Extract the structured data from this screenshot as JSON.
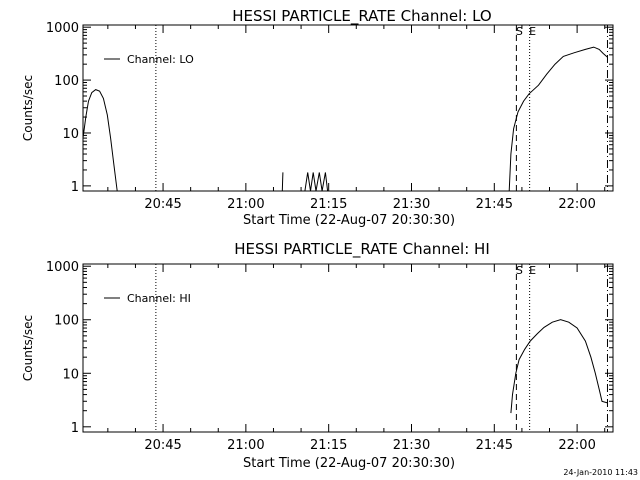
{
  "footer": {
    "generated": "24-Jan-2010 11:43"
  },
  "colors": {
    "foreground": "#000000",
    "background": "#ffffff"
  },
  "chart_data": [
    {
      "type": "line",
      "title": "HESSI PARTICLE_RATE Channel: LO",
      "xlabel": "Start Time (22-Aug-07 20:30:30)",
      "ylabel": "Counts/sec",
      "yscale": "log",
      "xunit": "minutes since 20:30:30",
      "xlim": [
        0,
        96
      ],
      "ylim": [
        0.8,
        1100
      ],
      "x_ticks": [
        {
          "x": 14.5,
          "label": "20:45"
        },
        {
          "x": 29.5,
          "label": "21:00"
        },
        {
          "x": 44.5,
          "label": "21:15"
        },
        {
          "x": 59.5,
          "label": "21:30"
        },
        {
          "x": 74.5,
          "label": "21:45"
        },
        {
          "x": 89.5,
          "label": "22:00"
        }
      ],
      "y_ticks": [
        {
          "y": 1,
          "label": "1"
        },
        {
          "y": 10,
          "label": "10"
        },
        {
          "y": 100,
          "label": "100"
        },
        {
          "y": 1000,
          "label": "1000"
        }
      ],
      "legend": {
        "label": "Channel: LO",
        "position": "top-left"
      },
      "markers": [
        {
          "x": 13.2,
          "style": "dotted",
          "label": ""
        },
        {
          "x": 78.5,
          "style": "dashed",
          "label": "S"
        },
        {
          "x": 80.9,
          "style": "dotted",
          "label": "E"
        },
        {
          "x": 95.0,
          "style": "dashdot",
          "label": ""
        }
      ],
      "segments": [
        [
          [
            0,
            8
          ],
          [
            0.5,
            20
          ],
          [
            1,
            40
          ],
          [
            1.6,
            58
          ],
          [
            2.3,
            66
          ],
          [
            3,
            62
          ],
          [
            3.7,
            45
          ],
          [
            4.4,
            22
          ],
          [
            5,
            8
          ],
          [
            5.6,
            2.5
          ],
          [
            6.2,
            0.8
          ]
        ],
        [
          [
            36.1,
            0.8
          ],
          [
            36.2,
            1.8
          ]
        ],
        [
          [
            40.2,
            0.8
          ],
          [
            40.7,
            1.8
          ],
          [
            41.2,
            0.8
          ],
          [
            41.7,
            1.8
          ],
          [
            42.2,
            0.8
          ],
          [
            42.8,
            1.8
          ],
          [
            43.3,
            0.8
          ],
          [
            43.9,
            1.8
          ],
          [
            44.3,
            0.8
          ]
        ],
        [
          [
            77.2,
            0.8
          ],
          [
            77.5,
            4
          ],
          [
            78,
            12
          ],
          [
            78.8,
            25
          ],
          [
            79.8,
            40
          ],
          [
            80.8,
            55
          ],
          [
            82.5,
            80
          ],
          [
            84,
            130
          ],
          [
            85.5,
            200
          ],
          [
            87,
            280
          ],
          [
            89,
            330
          ],
          [
            91,
            380
          ],
          [
            92.5,
            420
          ],
          [
            93.5,
            380
          ],
          [
            94.2,
            320
          ],
          [
            95,
            270
          ]
        ]
      ]
    },
    {
      "type": "line",
      "title": "HESSI PARTICLE_RATE Channel: HI",
      "xlabel": "Start Time (22-Aug-07 20:30:30)",
      "ylabel": "Counts/sec",
      "yscale": "log",
      "xunit": "minutes since 20:30:30",
      "xlim": [
        0,
        96
      ],
      "ylim": [
        0.8,
        1100
      ],
      "x_ticks": [
        {
          "x": 14.5,
          "label": "20:45"
        },
        {
          "x": 29.5,
          "label": "21:00"
        },
        {
          "x": 44.5,
          "label": "21:15"
        },
        {
          "x": 59.5,
          "label": "21:30"
        },
        {
          "x": 74.5,
          "label": "21:45"
        },
        {
          "x": 89.5,
          "label": "22:00"
        }
      ],
      "y_ticks": [
        {
          "y": 1,
          "label": "1"
        },
        {
          "y": 10,
          "label": "10"
        },
        {
          "y": 100,
          "label": "100"
        },
        {
          "y": 1000,
          "label": "1000"
        }
      ],
      "legend": {
        "label": "Channel: HI",
        "position": "top-left"
      },
      "markers": [
        {
          "x": 13.2,
          "style": "dotted",
          "label": ""
        },
        {
          "x": 78.5,
          "style": "dashed",
          "label": "S"
        },
        {
          "x": 80.9,
          "style": "dotted",
          "label": "E"
        },
        {
          "x": 95.0,
          "style": "dashdot",
          "label": ""
        }
      ],
      "segments": [
        [
          [
            77.5,
            1.8
          ],
          [
            77.8,
            4
          ],
          [
            78.4,
            10
          ],
          [
            79,
            18
          ],
          [
            80,
            28
          ],
          [
            81,
            40
          ],
          [
            82.3,
            55
          ],
          [
            83.5,
            72
          ],
          [
            85,
            90
          ],
          [
            86.5,
            100
          ],
          [
            88,
            90
          ],
          [
            89.5,
            70
          ],
          [
            91,
            40
          ],
          [
            92,
            20
          ],
          [
            92.8,
            10
          ],
          [
            93.5,
            5
          ],
          [
            94,
            3
          ],
          [
            95,
            2.8
          ]
        ]
      ]
    }
  ]
}
